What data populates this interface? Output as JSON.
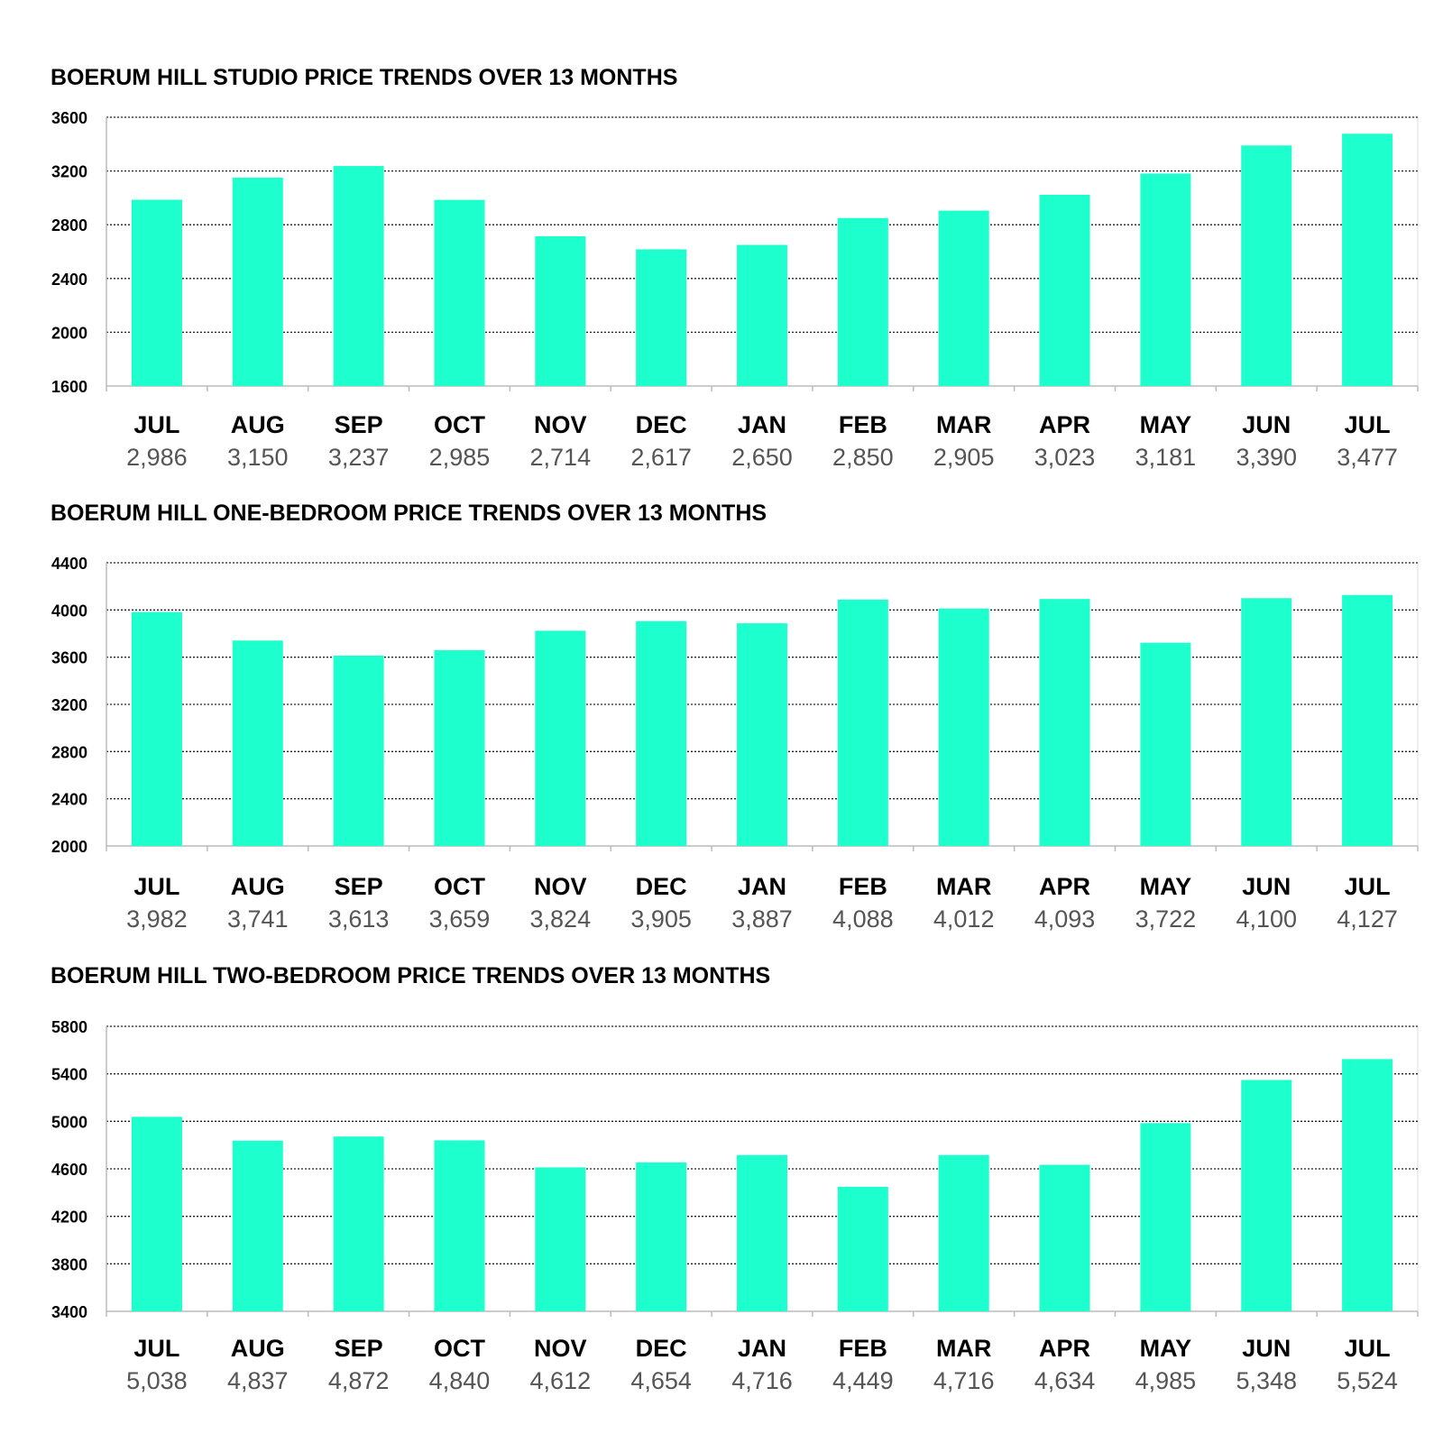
{
  "colors": {
    "bar": "#1dffcd",
    "grid": "#222222",
    "axis": "#bbbbbb",
    "background": "#ffffff"
  },
  "chart_data": [
    {
      "type": "bar",
      "title": "BOERUM HILL STUDIO PRICE TRENDS OVER 13 MONTHS",
      "categories": [
        "JUL",
        "AUG",
        "SEP",
        "OCT",
        "NOV",
        "DEC",
        "JAN",
        "FEB",
        "MAR",
        "APR",
        "MAY",
        "JUN",
        "JUL"
      ],
      "values": [
        2986,
        3150,
        3237,
        2985,
        2714,
        2617,
        2650,
        2850,
        2905,
        3023,
        3181,
        3390,
        3477
      ],
      "value_labels": [
        "2,986",
        "3,150",
        "3,237",
        "2,985",
        "2,714",
        "2,617",
        "2,650",
        "2,850",
        "2,905",
        "3,023",
        "3,181",
        "3,390",
        "3,477"
      ],
      "ylim": [
        1600,
        3600
      ],
      "yticks": [
        "1600",
        "2000",
        "2400",
        "2800",
        "3200",
        "3600"
      ],
      "grid": true,
      "legend": "none"
    },
    {
      "type": "bar",
      "title": "BOERUM HILL ONE-BEDROOM PRICE TRENDS OVER 13 MONTHS",
      "categories": [
        "JUL",
        "AUG",
        "SEP",
        "OCT",
        "NOV",
        "DEC",
        "JAN",
        "FEB",
        "MAR",
        "APR",
        "MAY",
        "JUN",
        "JUL"
      ],
      "values": [
        3982,
        3741,
        3613,
        3659,
        3824,
        3905,
        3887,
        4088,
        4012,
        4093,
        3722,
        4100,
        4127
      ],
      "value_labels": [
        "3,982",
        "3,741",
        "3,613",
        "3,659",
        "3,824",
        "3,905",
        "3,887",
        "4,088",
        "4,012",
        "4,093",
        "3,722",
        "4,100",
        "4,127"
      ],
      "ylim": [
        2000,
        4400
      ],
      "yticks": [
        "2000",
        "2400",
        "2800",
        "3200",
        "3600",
        "4000",
        "4400"
      ],
      "grid": true,
      "legend": "none"
    },
    {
      "type": "bar",
      "title": "BOERUM HILL TWO-BEDROOM PRICE TRENDS OVER 13 MONTHS",
      "categories": [
        "JUL",
        "AUG",
        "SEP",
        "OCT",
        "NOV",
        "DEC",
        "JAN",
        "FEB",
        "MAR",
        "APR",
        "MAY",
        "JUN",
        "JUL"
      ],
      "values": [
        5038,
        4837,
        4872,
        4840,
        4612,
        4654,
        4716,
        4449,
        4716,
        4634,
        4985,
        5348,
        5524
      ],
      "value_labels": [
        "5,038",
        "4,837",
        "4,872",
        "4,840",
        "4,612",
        "4,654",
        "4,716",
        "4,449",
        "4,716",
        "4,634",
        "4,985",
        "5,348",
        "5,524"
      ],
      "ylim": [
        3400,
        5800
      ],
      "yticks": [
        "3400",
        "3800",
        "4200",
        "4600",
        "5000",
        "5400",
        "5800"
      ],
      "grid": true,
      "legend": "none"
    }
  ]
}
